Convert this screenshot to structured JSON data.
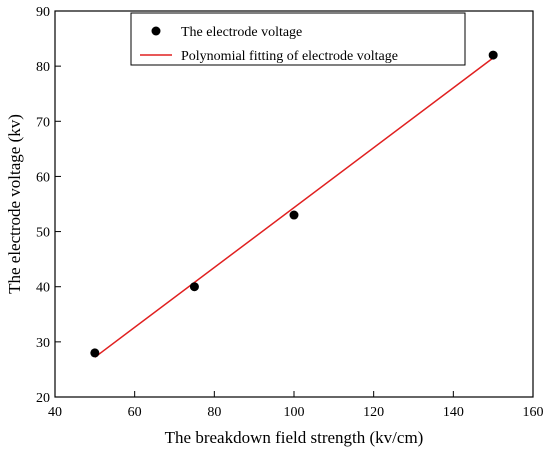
{
  "chart_data": {
    "type": "scatter",
    "xlabel": "The breakdown field strength (kv/cm)",
    "ylabel": "The electrode voltage (kv)",
    "xlim": [
      40,
      160
    ],
    "ylim": [
      20,
      90
    ],
    "xticks": [
      40,
      60,
      80,
      100,
      120,
      140,
      160
    ],
    "yticks": [
      20,
      30,
      40,
      50,
      60,
      70,
      80,
      90
    ],
    "grid": false,
    "legend_position": "top-right",
    "series": [
      {
        "name": "The electrode voltage",
        "kind": "scatter",
        "color": "#000000",
        "x": [
          50,
          75,
          100,
          150
        ],
        "y": [
          28,
          40,
          53,
          82
        ]
      },
      {
        "name": "Polynomial fitting of electrode voltage",
        "kind": "line",
        "color": "#e02020",
        "x": [
          50,
          150
        ],
        "y": [
          27.2,
          81.5
        ]
      }
    ]
  }
}
